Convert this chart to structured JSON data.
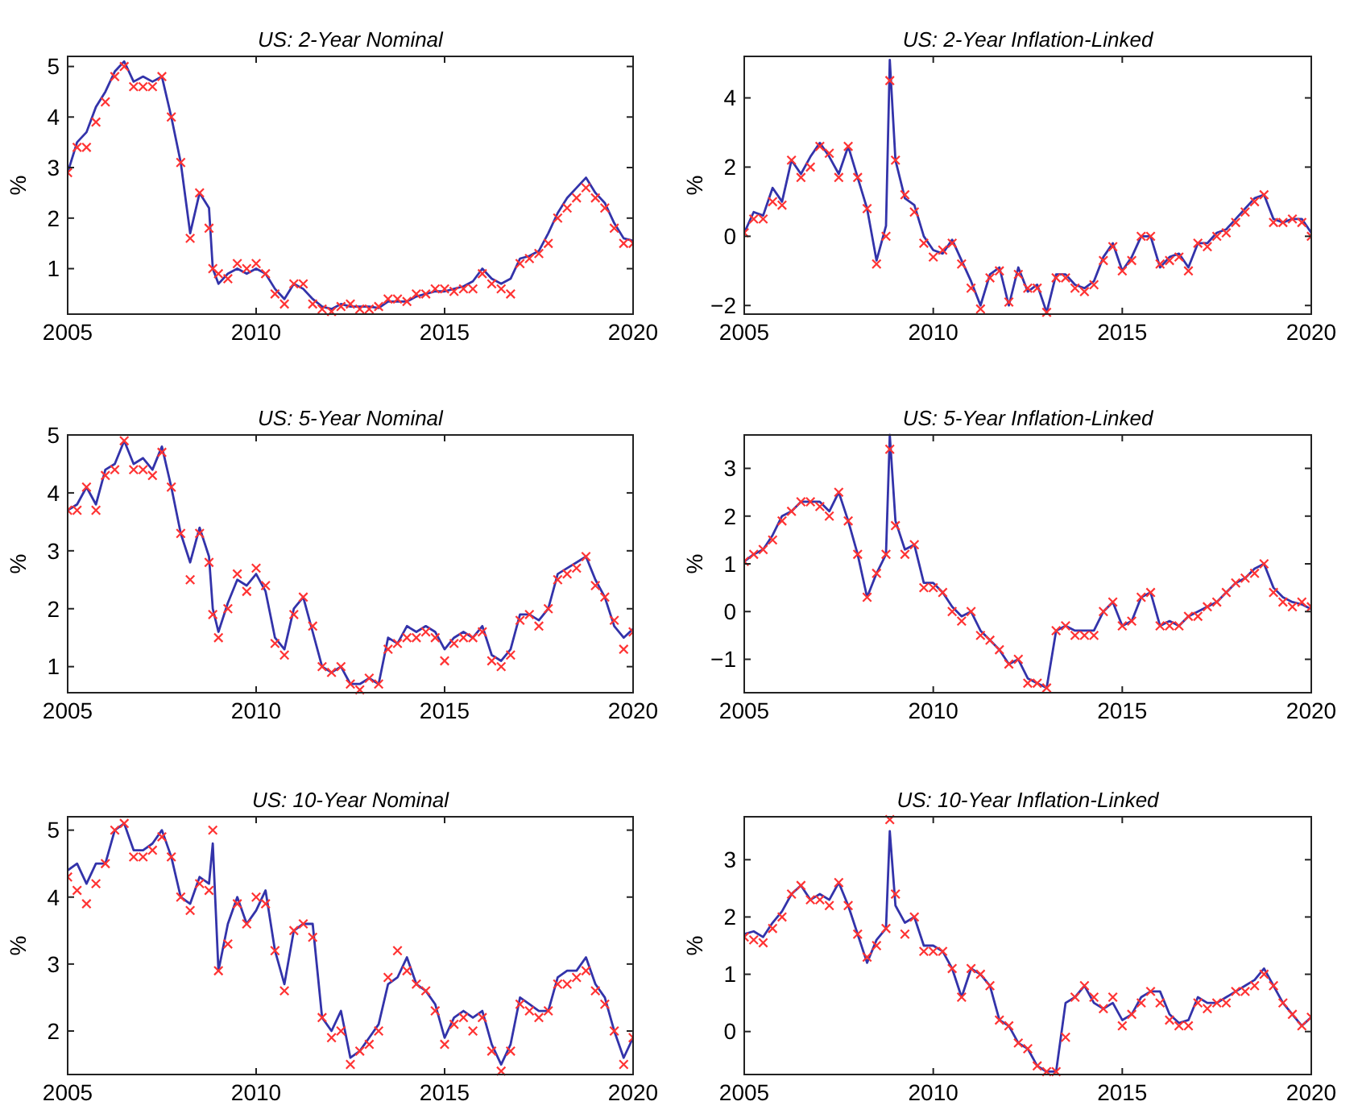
{
  "chart_data": [
    {
      "type": "line",
      "title": "US: 2-Year Nominal",
      "ylabel": "%",
      "xlim": [
        2005,
        2020
      ],
      "xticks": [
        2005,
        2010,
        2015,
        2020
      ],
      "ylim": [
        0.1,
        5.2
      ],
      "yticks": [
        1,
        2,
        3,
        4,
        5
      ],
      "grid": false,
      "x": [
        2005,
        2005.25,
        2005.5,
        2005.75,
        2006,
        2006.25,
        2006.5,
        2006.75,
        2007,
        2007.25,
        2007.5,
        2007.75,
        2008,
        2008.25,
        2008.5,
        2008.75,
        2008.85,
        2009,
        2009.25,
        2009.5,
        2009.75,
        2010,
        2010.25,
        2010.5,
        2010.75,
        2011,
        2011.25,
        2011.5,
        2011.75,
        2012,
        2012.25,
        2012.5,
        2012.75,
        2013,
        2013.25,
        2013.5,
        2013.75,
        2014,
        2014.25,
        2014.5,
        2014.75,
        2015,
        2015.25,
        2015.5,
        2015.75,
        2016,
        2016.25,
        2016.5,
        2016.75,
        2017,
        2017.25,
        2017.5,
        2017.75,
        2018,
        2018.25,
        2018.5,
        2018.75,
        2019,
        2019.25,
        2019.5,
        2019.75,
        2020
      ],
      "series": [
        {
          "type": "line",
          "color": "#3333aa",
          "marker": "none",
          "values": [
            2.9,
            3.5,
            3.7,
            4.2,
            4.5,
            4.9,
            5.1,
            4.7,
            4.8,
            4.7,
            4.8,
            4.0,
            3.1,
            1.7,
            2.5,
            2.2,
            1.0,
            0.7,
            0.9,
            1.0,
            0.9,
            1.0,
            0.9,
            0.6,
            0.4,
            0.7,
            0.6,
            0.4,
            0.25,
            0.2,
            0.3,
            0.25,
            0.25,
            0.25,
            0.22,
            0.35,
            0.35,
            0.35,
            0.45,
            0.5,
            0.55,
            0.55,
            0.6,
            0.65,
            0.75,
            1.0,
            0.8,
            0.7,
            0.8,
            1.2,
            1.25,
            1.35,
            1.7,
            2.1,
            2.4,
            2.6,
            2.8,
            2.5,
            2.3,
            1.9,
            1.6,
            1.55
          ]
        },
        {
          "type": "scatter",
          "color": "#ff3333",
          "marker": "cross",
          "values": [
            2.9,
            3.4,
            3.4,
            3.9,
            4.3,
            4.8,
            5.0,
            4.6,
            4.6,
            4.6,
            4.8,
            4.0,
            3.1,
            1.6,
            2.5,
            1.8,
            1.0,
            0.9,
            0.8,
            1.1,
            1.0,
            1.1,
            0.9,
            0.5,
            0.3,
            0.7,
            0.7,
            0.3,
            0.2,
            0.15,
            0.25,
            0.3,
            0.2,
            0.2,
            0.25,
            0.4,
            0.4,
            0.35,
            0.5,
            0.5,
            0.6,
            0.6,
            0.55,
            0.6,
            0.6,
            0.9,
            0.7,
            0.6,
            0.5,
            1.1,
            1.2,
            1.3,
            1.5,
            2.0,
            2.2,
            2.4,
            2.6,
            2.4,
            2.2,
            1.8,
            1.5,
            1.5
          ]
        }
      ]
    },
    {
      "type": "line",
      "title": "US: 2-Year Inflation-Linked",
      "ylabel": "%",
      "xlim": [
        2005,
        2020
      ],
      "xticks": [
        2005,
        2010,
        2015,
        2020
      ],
      "ylim": [
        -2.25,
        5.2
      ],
      "yticks": [
        -2,
        0,
        2,
        4
      ],
      "grid": false,
      "x": [
        2005,
        2005.25,
        2005.5,
        2005.75,
        2006,
        2006.25,
        2006.5,
        2006.75,
        2007,
        2007.25,
        2007.5,
        2007.75,
        2008,
        2008.25,
        2008.5,
        2008.75,
        2008.85,
        2009,
        2009.25,
        2009.5,
        2009.75,
        2010,
        2010.25,
        2010.5,
        2010.75,
        2011,
        2011.25,
        2011.5,
        2011.75,
        2012,
        2012.25,
        2012.5,
        2012.75,
        2013,
        2013.25,
        2013.5,
        2013.75,
        2014,
        2014.25,
        2014.5,
        2014.75,
        2015,
        2015.25,
        2015.5,
        2015.75,
        2016,
        2016.25,
        2016.5,
        2016.75,
        2017,
        2017.25,
        2017.5,
        2017.75,
        2018,
        2018.25,
        2018.5,
        2018.75,
        2019,
        2019.25,
        2019.5,
        2019.75,
        2020
      ],
      "series": [
        {
          "type": "line",
          "color": "#3333aa",
          "marker": "none",
          "values": [
            0.1,
            0.7,
            0.6,
            1.4,
            1.0,
            2.2,
            1.8,
            2.3,
            2.7,
            2.3,
            1.8,
            2.6,
            1.7,
            0.8,
            -0.7,
            0.3,
            5.1,
            2.2,
            1.1,
            0.9,
            0.0,
            -0.4,
            -0.5,
            -0.1,
            -0.7,
            -1.3,
            -2.0,
            -1.1,
            -0.9,
            -2.0,
            -0.9,
            -1.6,
            -1.4,
            -2.2,
            -1.1,
            -1.1,
            -1.4,
            -1.5,
            -1.3,
            -0.6,
            -0.2,
            -1.0,
            -0.6,
            0.0,
            0.0,
            -0.9,
            -0.6,
            -0.5,
            -0.9,
            -0.2,
            -0.2,
            0.1,
            0.2,
            0.5,
            0.8,
            1.1,
            1.2,
            0.5,
            0.4,
            0.5,
            0.5,
            0.1
          ]
        },
        {
          "type": "scatter",
          "color": "#ff3333",
          "marker": "cross",
          "values": [
            0.1,
            0.5,
            0.5,
            1.0,
            0.9,
            2.2,
            1.7,
            2.0,
            2.6,
            2.4,
            1.7,
            2.6,
            1.7,
            0.8,
            -0.8,
            0.0,
            4.5,
            2.2,
            1.2,
            0.7,
            -0.2,
            -0.6,
            -0.4,
            -0.2,
            -0.8,
            -1.5,
            -2.1,
            -1.2,
            -1.0,
            -1.9,
            -1.1,
            -1.5,
            -1.5,
            -2.2,
            -1.2,
            -1.2,
            -1.5,
            -1.6,
            -1.4,
            -0.7,
            -0.3,
            -1.0,
            -0.7,
            0.0,
            0.0,
            -0.8,
            -0.7,
            -0.6,
            -1.0,
            -0.2,
            -0.3,
            0.0,
            0.1,
            0.4,
            0.7,
            1.0,
            1.2,
            0.4,
            0.4,
            0.5,
            0.4,
            0.0
          ]
        }
      ]
    },
    {
      "type": "line",
      "title": "US: 5-Year Nominal",
      "ylabel": "%",
      "xlim": [
        2005,
        2020
      ],
      "xticks": [
        2005,
        2010,
        2015,
        2020
      ],
      "ylim": [
        0.55,
        5
      ],
      "yticks": [
        1,
        2,
        3,
        4,
        5
      ],
      "grid": false,
      "x": [
        2005,
        2005.25,
        2005.5,
        2005.75,
        2006,
        2006.25,
        2006.5,
        2006.75,
        2007,
        2007.25,
        2007.5,
        2007.75,
        2008,
        2008.25,
        2008.5,
        2008.75,
        2008.85,
        2009,
        2009.25,
        2009.5,
        2009.75,
        2010,
        2010.25,
        2010.5,
        2010.75,
        2011,
        2011.25,
        2011.5,
        2011.75,
        2012,
        2012.25,
        2012.5,
        2012.75,
        2013,
        2013.25,
        2013.5,
        2013.75,
        2014,
        2014.25,
        2014.5,
        2014.75,
        2015,
        2015.25,
        2015.5,
        2015.75,
        2016,
        2016.25,
        2016.5,
        2016.75,
        2017,
        2017.25,
        2017.5,
        2017.75,
        2018,
        2018.25,
        2018.5,
        2018.75,
        2019,
        2019.25,
        2019.5,
        2019.75,
        2020
      ],
      "series": [
        {
          "type": "line",
          "color": "#3333aa",
          "marker": "none",
          "values": [
            3.7,
            3.8,
            4.1,
            3.8,
            4.4,
            4.5,
            4.9,
            4.5,
            4.6,
            4.4,
            4.8,
            4.1,
            3.3,
            2.8,
            3.4,
            2.9,
            2.0,
            1.6,
            2.1,
            2.5,
            2.4,
            2.6,
            2.3,
            1.5,
            1.3,
            2.0,
            2.2,
            1.6,
            1.0,
            0.9,
            1.0,
            0.7,
            0.7,
            0.8,
            0.7,
            1.5,
            1.4,
            1.7,
            1.6,
            1.7,
            1.6,
            1.3,
            1.5,
            1.6,
            1.5,
            1.7,
            1.2,
            1.1,
            1.3,
            1.9,
            1.9,
            1.8,
            2.0,
            2.6,
            2.7,
            2.8,
            2.9,
            2.5,
            2.2,
            1.7,
            1.5,
            1.65
          ]
        },
        {
          "type": "scatter",
          "color": "#ff3333",
          "marker": "cross",
          "values": [
            3.7,
            3.7,
            4.1,
            3.7,
            4.3,
            4.4,
            4.9,
            4.4,
            4.4,
            4.3,
            4.7,
            4.1,
            3.3,
            2.5,
            3.3,
            2.8,
            1.9,
            1.5,
            2.0,
            2.6,
            2.3,
            2.7,
            2.4,
            1.4,
            1.2,
            1.9,
            2.2,
            1.7,
            1.0,
            0.9,
            1.0,
            0.7,
            0.6,
            0.8,
            0.7,
            1.3,
            1.4,
            1.5,
            1.5,
            1.6,
            1.5,
            1.1,
            1.4,
            1.5,
            1.5,
            1.6,
            1.1,
            1.0,
            1.2,
            1.8,
            1.9,
            1.7,
            2.0,
            2.5,
            2.6,
            2.7,
            2.9,
            2.4,
            2.2,
            1.8,
            1.3,
            1.6
          ]
        }
      ]
    },
    {
      "type": "line",
      "title": "US: 5-Year Inflation-Linked",
      "ylabel": "%",
      "xlim": [
        2005,
        2020
      ],
      "xticks": [
        2005,
        2010,
        2015,
        2020
      ],
      "ylim": [
        -1.7,
        3.7
      ],
      "yticks": [
        -1,
        0,
        1,
        2,
        3
      ],
      "grid": false,
      "x": [
        2005,
        2005.25,
        2005.5,
        2005.75,
        2006,
        2006.25,
        2006.5,
        2006.75,
        2007,
        2007.25,
        2007.5,
        2007.75,
        2008,
        2008.25,
        2008.5,
        2008.75,
        2008.85,
        2009,
        2009.25,
        2009.5,
        2009.75,
        2010,
        2010.25,
        2010.5,
        2010.75,
        2011,
        2011.25,
        2011.5,
        2011.75,
        2012,
        2012.25,
        2012.5,
        2012.75,
        2013,
        2013.25,
        2013.5,
        2013.75,
        2014,
        2014.25,
        2014.5,
        2014.75,
        2015,
        2015.25,
        2015.5,
        2015.75,
        2016,
        2016.25,
        2016.5,
        2016.75,
        2017,
        2017.25,
        2017.5,
        2017.75,
        2018,
        2018.25,
        2018.5,
        2018.75,
        2019,
        2019.25,
        2019.5,
        2019.75,
        2020
      ],
      "series": [
        {
          "type": "line",
          "color": "#3333aa",
          "marker": "none",
          "values": [
            1.05,
            1.2,
            1.3,
            1.6,
            2.0,
            2.1,
            2.3,
            2.3,
            2.3,
            2.1,
            2.5,
            1.9,
            1.2,
            0.3,
            0.8,
            1.2,
            3.7,
            1.9,
            1.3,
            1.4,
            0.6,
            0.6,
            0.4,
            0.1,
            -0.1,
            0.0,
            -0.4,
            -0.6,
            -0.8,
            -1.1,
            -1.0,
            -1.4,
            -1.5,
            -1.6,
            -0.4,
            -0.3,
            -0.4,
            -0.4,
            -0.4,
            0.0,
            0.2,
            -0.3,
            -0.2,
            0.3,
            0.4,
            -0.3,
            -0.2,
            -0.3,
            -0.1,
            0.0,
            0.1,
            0.2,
            0.4,
            0.6,
            0.7,
            0.9,
            1.0,
            0.5,
            0.3,
            0.2,
            0.15,
            0.05
          ]
        },
        {
          "type": "scatter",
          "color": "#ff3333",
          "marker": "cross",
          "values": [
            1.05,
            1.2,
            1.3,
            1.5,
            1.9,
            2.1,
            2.3,
            2.3,
            2.2,
            2.0,
            2.5,
            1.9,
            1.2,
            0.3,
            0.8,
            1.2,
            3.4,
            1.8,
            1.2,
            1.4,
            0.5,
            0.5,
            0.4,
            0.0,
            -0.2,
            0.0,
            -0.5,
            -0.6,
            -0.8,
            -1.1,
            -1.0,
            -1.5,
            -1.5,
            -1.6,
            -0.4,
            -0.3,
            -0.5,
            -0.5,
            -0.5,
            0.0,
            0.2,
            -0.3,
            -0.2,
            0.3,
            0.4,
            -0.3,
            -0.3,
            -0.3,
            -0.1,
            -0.1,
            0.1,
            0.2,
            0.4,
            0.6,
            0.7,
            0.8,
            1.0,
            0.4,
            0.2,
            0.1,
            0.2,
            0.1
          ]
        }
      ]
    },
    {
      "type": "line",
      "title": "US: 10-Year Nominal",
      "ylabel": "%",
      "xlim": [
        2005,
        2020
      ],
      "xticks": [
        2005,
        2010,
        2015,
        2020
      ],
      "ylim": [
        1.35,
        5.2
      ],
      "yticks": [
        2,
        3,
        4,
        5
      ],
      "grid": false,
      "x": [
        2005,
        2005.25,
        2005.5,
        2005.75,
        2006,
        2006.25,
        2006.5,
        2006.75,
        2007,
        2007.25,
        2007.5,
        2007.75,
        2008,
        2008.25,
        2008.5,
        2008.75,
        2008.85,
        2009,
        2009.25,
        2009.5,
        2009.75,
        2010,
        2010.25,
        2010.5,
        2010.75,
        2011,
        2011.25,
        2011.5,
        2011.75,
        2012,
        2012.25,
        2012.5,
        2012.75,
        2013,
        2013.25,
        2013.5,
        2013.75,
        2014,
        2014.25,
        2014.5,
        2014.75,
        2015,
        2015.25,
        2015.5,
        2015.75,
        2016,
        2016.25,
        2016.5,
        2016.75,
        2017,
        2017.25,
        2017.5,
        2017.75,
        2018,
        2018.25,
        2018.5,
        2018.75,
        2019,
        2019.25,
        2019.5,
        2019.75,
        2020
      ],
      "series": [
        {
          "type": "line",
          "color": "#3333aa",
          "marker": "none",
          "values": [
            4.4,
            4.5,
            4.2,
            4.5,
            4.5,
            5.0,
            5.1,
            4.7,
            4.7,
            4.8,
            5.0,
            4.6,
            4.0,
            3.9,
            4.3,
            4.2,
            4.8,
            2.9,
            3.6,
            4.0,
            3.6,
            3.8,
            4.1,
            3.2,
            2.7,
            3.5,
            3.6,
            3.6,
            2.2,
            2.0,
            2.3,
            1.6,
            1.7,
            1.9,
            2.1,
            2.7,
            2.8,
            3.1,
            2.7,
            2.6,
            2.4,
            1.9,
            2.2,
            2.3,
            2.2,
            2.3,
            1.8,
            1.5,
            1.8,
            2.5,
            2.4,
            2.3,
            2.3,
            2.8,
            2.9,
            2.9,
            3.1,
            2.7,
            2.5,
            2.0,
            1.6,
            1.9
          ]
        },
        {
          "type": "scatter",
          "color": "#ff3333",
          "marker": "cross",
          "values": [
            4.3,
            4.1,
            3.9,
            4.2,
            4.5,
            5.0,
            5.1,
            4.6,
            4.6,
            4.7,
            4.9,
            4.6,
            4.0,
            3.8,
            4.2,
            4.1,
            5.0,
            2.9,
            3.3,
            3.9,
            3.6,
            4.0,
            3.9,
            3.2,
            2.6,
            3.5,
            3.6,
            3.4,
            2.2,
            1.9,
            2.0,
            1.5,
            1.7,
            1.8,
            2.0,
            2.8,
            3.2,
            2.9,
            2.7,
            2.6,
            2.3,
            1.8,
            2.1,
            2.2,
            2.0,
            2.2,
            1.7,
            1.4,
            1.7,
            2.4,
            2.3,
            2.2,
            2.3,
            2.7,
            2.7,
            2.8,
            2.9,
            2.6,
            2.4,
            2.0,
            1.5,
            1.9
          ]
        }
      ]
    },
    {
      "type": "line",
      "title": "US: 10-Year Inflation-Linked",
      "ylabel": "%",
      "xlim": [
        2005,
        2020
      ],
      "xticks": [
        2005,
        2010,
        2015,
        2020
      ],
      "ylim": [
        -0.75,
        3.75
      ],
      "yticks": [
        0,
        1,
        2,
        3
      ],
      "grid": false,
      "x": [
        2005,
        2005.25,
        2005.5,
        2005.75,
        2006,
        2006.25,
        2006.5,
        2006.75,
        2007,
        2007.25,
        2007.5,
        2007.75,
        2008,
        2008.25,
        2008.5,
        2008.75,
        2008.85,
        2009,
        2009.25,
        2009.5,
        2009.75,
        2010,
        2010.25,
        2010.5,
        2010.75,
        2011,
        2011.25,
        2011.5,
        2011.75,
        2012,
        2012.25,
        2012.5,
        2012.75,
        2013,
        2013.25,
        2013.5,
        2013.75,
        2014,
        2014.25,
        2014.5,
        2014.75,
        2015,
        2015.25,
        2015.5,
        2015.75,
        2016,
        2016.25,
        2016.5,
        2016.75,
        2017,
        2017.25,
        2017.5,
        2017.75,
        2018,
        2018.25,
        2018.5,
        2018.75,
        2019,
        2019.25,
        2019.5,
        2019.75,
        2020
      ],
      "series": [
        {
          "type": "line",
          "color": "#3333aa",
          "marker": "none",
          "values": [
            1.7,
            1.75,
            1.65,
            1.9,
            2.1,
            2.4,
            2.55,
            2.3,
            2.4,
            2.3,
            2.6,
            2.2,
            1.7,
            1.2,
            1.6,
            1.8,
            3.5,
            2.2,
            1.9,
            2.0,
            1.5,
            1.5,
            1.4,
            1.1,
            0.6,
            1.1,
            1.0,
            0.8,
            0.2,
            0.1,
            -0.2,
            -0.3,
            -0.6,
            -0.7,
            -0.7,
            0.5,
            0.6,
            0.8,
            0.5,
            0.4,
            0.5,
            0.2,
            0.3,
            0.6,
            0.7,
            0.7,
            0.3,
            0.15,
            0.2,
            0.6,
            0.5,
            0.5,
            0.6,
            0.7,
            0.8,
            0.9,
            1.1,
            0.8,
            0.5,
            0.3,
            0.1,
            0.25
          ]
        },
        {
          "type": "scatter",
          "color": "#ff3333",
          "marker": "cross",
          "values": [
            1.65,
            1.6,
            1.55,
            1.8,
            2.0,
            2.4,
            2.55,
            2.3,
            2.3,
            2.2,
            2.6,
            2.2,
            1.7,
            1.3,
            1.5,
            1.8,
            3.7,
            2.4,
            1.7,
            2.0,
            1.4,
            1.4,
            1.4,
            1.1,
            0.6,
            1.1,
            1.0,
            0.8,
            0.2,
            0.1,
            -0.2,
            -0.3,
            -0.6,
            -0.7,
            -0.7,
            -0.1,
            0.6,
            0.8,
            0.6,
            0.4,
            0.6,
            0.1,
            0.3,
            0.5,
            0.7,
            0.5,
            0.2,
            0.1,
            0.1,
            0.5,
            0.4,
            0.5,
            0.5,
            0.7,
            0.7,
            0.8,
            1.0,
            0.8,
            0.5,
            0.3,
            0.1,
            0.25
          ]
        }
      ]
    }
  ]
}
